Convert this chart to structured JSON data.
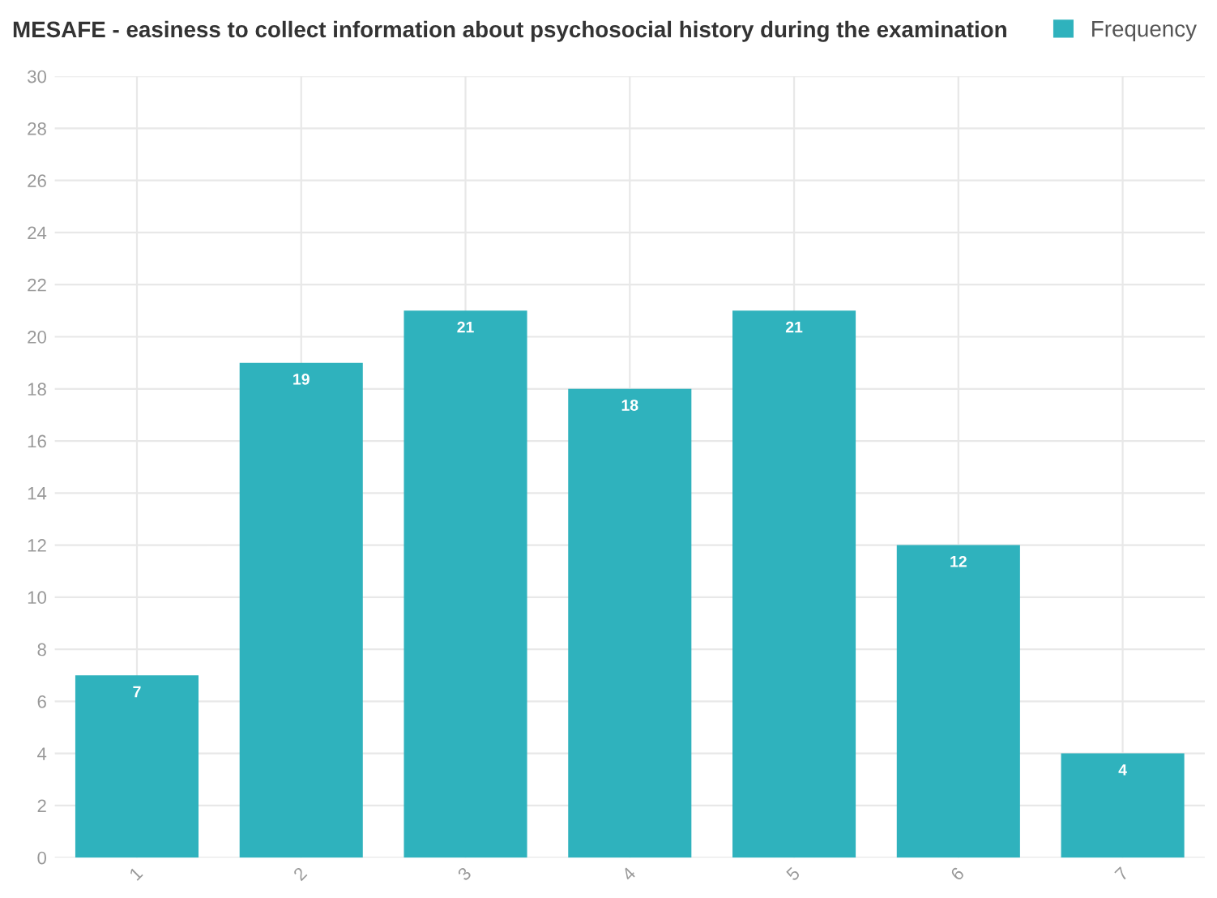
{
  "chart_data": {
    "type": "bar",
    "title": "MESAFE - easiness to collect information about psychosocial history during the examination",
    "categories": [
      "1",
      "2",
      "3",
      "4",
      "5",
      "6",
      "7"
    ],
    "series": [
      {
        "name": "Frequency",
        "color": "#2fb2bd",
        "values": [
          7,
          19,
          21,
          18,
          21,
          12,
          4
        ]
      }
    ],
    "ylim": [
      0,
      30
    ],
    "yticks": [
      0,
      2,
      4,
      6,
      8,
      10,
      12,
      14,
      16,
      18,
      20,
      22,
      24,
      26,
      28,
      30
    ],
    "grid": true,
    "legend": "top right",
    "data_labels": true
  }
}
